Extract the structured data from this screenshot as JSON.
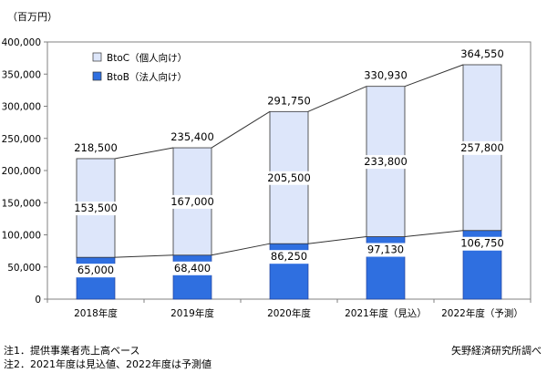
{
  "chart_data": {
    "type": "bar",
    "stacked": true,
    "unit_label": "（百万円）",
    "categories": [
      "2018年度",
      "2019年度",
      "2020年度",
      "2021年度（見込）",
      "2022年度（予測）"
    ],
    "series": [
      {
        "name": "BtoB（法人向け）",
        "values": [
          65000,
          68400,
          86250,
          97130,
          106750
        ],
        "color": "#2f6fe0"
      },
      {
        "name": "BtoC（個人向け）",
        "values": [
          153500,
          167000,
          205500,
          233800,
          257800
        ],
        "color": "#dde6fa"
      }
    ],
    "totals": [
      218500,
      235400,
      291750,
      330930,
      364550
    ],
    "value_labels": {
      "btob": [
        "65,000",
        "68,400",
        "86,250",
        "97,130",
        "106,750"
      ],
      "btoc": [
        "153,500",
        "167,000",
        "205,500",
        "233,800",
        "257,800"
      ],
      "totals": [
        "218,500",
        "235,400",
        "291,750",
        "330,930",
        "364,550"
      ]
    },
    "ylim": [
      0,
      400000
    ],
    "yticks": [
      0,
      50000,
      100000,
      150000,
      200000,
      250000,
      300000,
      350000,
      400000
    ],
    "ytick_labels": [
      "0",
      "50,000",
      "100,000",
      "150,000",
      "200,000",
      "250,000",
      "300,000",
      "350,000",
      "400,000"
    ],
    "legend": {
      "position": "top-left",
      "order": [
        "BtoC（個人向け）",
        "BtoB（法人向け）"
      ]
    },
    "connector_lines": true,
    "grid": false
  },
  "notes": {
    "note1": "注1．提供事業者売上高ベース",
    "note2": "注2．2021年度は見込値、2022年度は予測値",
    "source": "矢野経済研究所調べ"
  }
}
